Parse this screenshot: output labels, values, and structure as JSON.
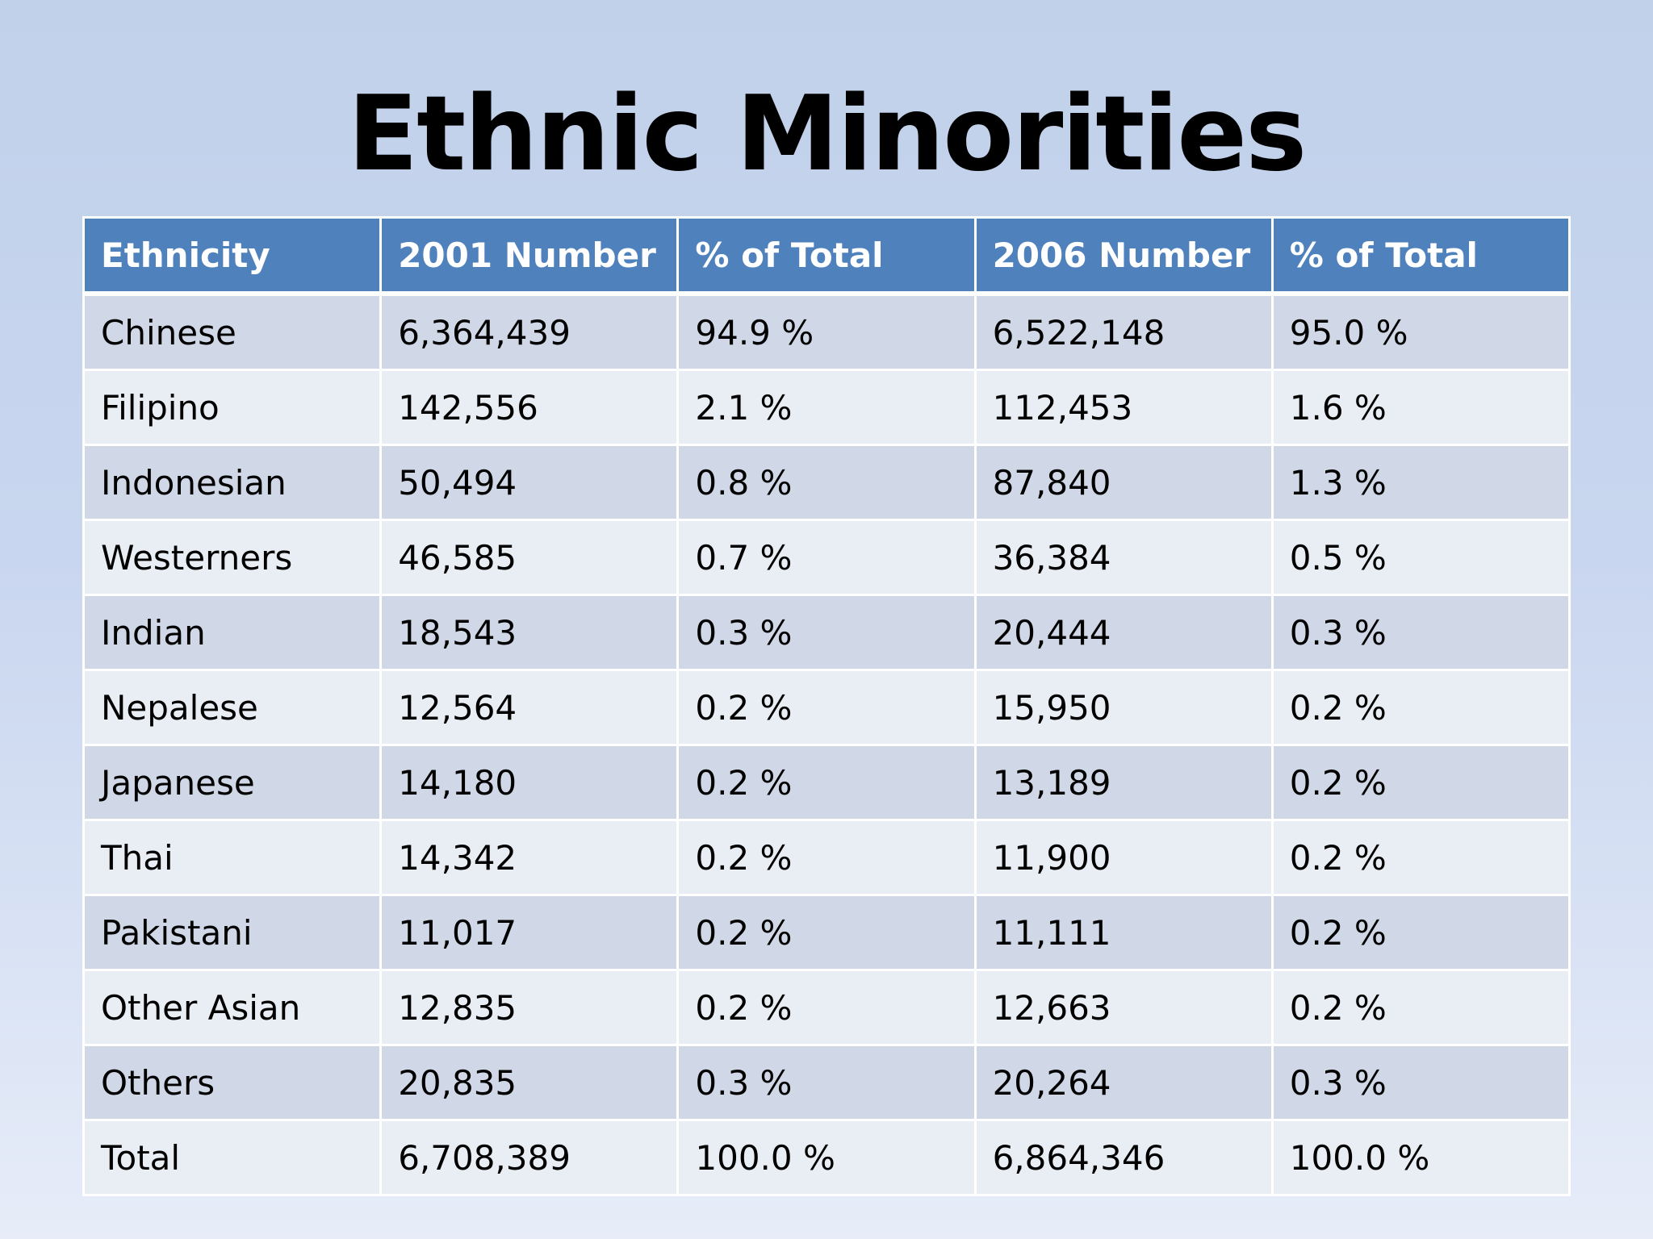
{
  "title": "Ethnic Minorities",
  "table": {
    "headers": [
      "Ethnicity",
      "2001 Number",
      "% of Total",
      "2006 Number",
      "% of Total"
    ],
    "rows": [
      [
        "Chinese",
        "6,364,439",
        "94.9 %",
        "6,522,148",
        "95.0 %"
      ],
      [
        "Filipino",
        "142,556",
        "2.1 %",
        "112,453",
        "1.6 %"
      ],
      [
        "Indonesian",
        "50,494",
        "0.8 %",
        "87,840",
        "1.3 %"
      ],
      [
        "Westerners",
        "46,585",
        "0.7 %",
        "36,384",
        "0.5 %"
      ],
      [
        "Indian",
        "18,543",
        "0.3 %",
        "20,444",
        "0.3 %"
      ],
      [
        "Nepalese",
        "12,564",
        "0.2 %",
        "15,950",
        "0.2 %"
      ],
      [
        "Japanese",
        "14,180",
        "0.2 %",
        "13,189",
        "0.2 %"
      ],
      [
        "Thai",
        "14,342",
        "0.2 %",
        "11,900",
        "0.2 %"
      ],
      [
        "Pakistani",
        "11,017",
        "0.2 %",
        "11,111",
        "0.2 %"
      ],
      [
        "Other Asian",
        "12,835",
        "0.2 %",
        "12,663",
        "0.2 %"
      ],
      [
        "Others",
        "20,835",
        "0.3 %",
        "20,264",
        "0.3 %"
      ],
      [
        "Total",
        "6,708,389",
        "100.0 %",
        "6,864,346",
        "100.0 %"
      ]
    ]
  },
  "colors": {
    "header_bg": "#4f81bd",
    "row_band_dark": "#d0d8e8",
    "row_band_light": "#e9edf4"
  }
}
